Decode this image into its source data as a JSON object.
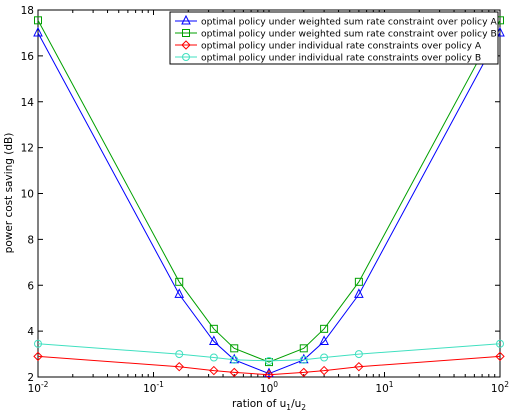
{
  "chart_data": {
    "type": "line",
    "xscale": "log",
    "xlim": [
      0.01,
      100
    ],
    "ylim": [
      2,
      18
    ],
    "xlabel_parts": [
      "ration of u",
      "1",
      "/u",
      "2"
    ],
    "ylabel": "power cost saving (dB)",
    "xticks": [
      {
        "value": 0.01,
        "base": "10",
        "exp": "-2"
      },
      {
        "value": 0.1,
        "base": "10",
        "exp": "-1"
      },
      {
        "value": 1,
        "base": "10",
        "exp": "0"
      },
      {
        "value": 10,
        "base": "10",
        "exp": "1"
      },
      {
        "value": 100,
        "base": "10",
        "exp": "2"
      }
    ],
    "yticks": [
      2,
      4,
      6,
      8,
      10,
      12,
      14,
      16,
      18
    ],
    "grid": false,
    "legend_position": "top-right",
    "x": [
      0.01,
      0.167,
      0.333,
      0.5,
      1,
      2,
      3,
      6,
      100
    ],
    "series": [
      {
        "name": "optimal policy under weighted sum rate constraint over policy A",
        "color": "#0000ff",
        "marker": "triangle",
        "values": [
          17.0,
          5.6,
          3.55,
          2.75,
          2.15,
          2.75,
          3.55,
          5.6,
          17.0
        ]
      },
      {
        "name": "optimal policy under weighted sum rate constraint over policy B",
        "color": "#00a000",
        "marker": "square",
        "values": [
          17.55,
          6.15,
          4.1,
          3.25,
          2.65,
          3.25,
          4.1,
          6.15,
          17.55
        ]
      },
      {
        "name": "optimal policy under individual rate constraints over policy A",
        "color": "#ff0000",
        "marker": "diamond",
        "values": [
          2.9,
          2.45,
          2.28,
          2.2,
          2.1,
          2.2,
          2.28,
          2.45,
          2.9
        ]
      },
      {
        "name": "optimal policy under individual rate constraints over policy B",
        "color": "#40e0c0",
        "marker": "circle",
        "values": [
          3.45,
          3.0,
          2.85,
          2.75,
          2.7,
          2.75,
          2.85,
          3.0,
          3.45
        ]
      }
    ]
  }
}
